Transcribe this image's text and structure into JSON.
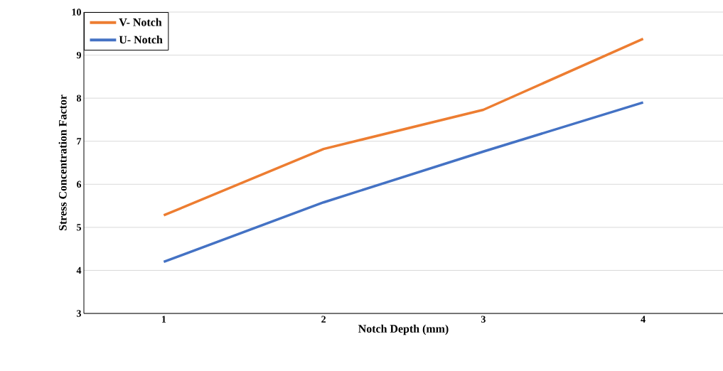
{
  "chart_data": {
    "type": "line",
    "xlabel": "Notch Depth (mm)",
    "ylabel": "Stress Concentration Factor",
    "categories": [
      "1",
      "2",
      "3",
      "4"
    ],
    "series": [
      {
        "name": "V- Notch",
        "color": "#ed7d31",
        "values": [
          5.28,
          6.82,
          7.73,
          9.38
        ]
      },
      {
        "name": "U- Notch",
        "color": "#4472c4",
        "values": [
          4.2,
          5.58,
          6.76,
          7.9
        ]
      }
    ],
    "ylim": [
      3,
      10
    ],
    "yticks": [
      3,
      4,
      5,
      6,
      7,
      8,
      9,
      10
    ],
    "grid": "y",
    "legend": "top left",
    "marker": "none",
    "line_style": "solid"
  }
}
